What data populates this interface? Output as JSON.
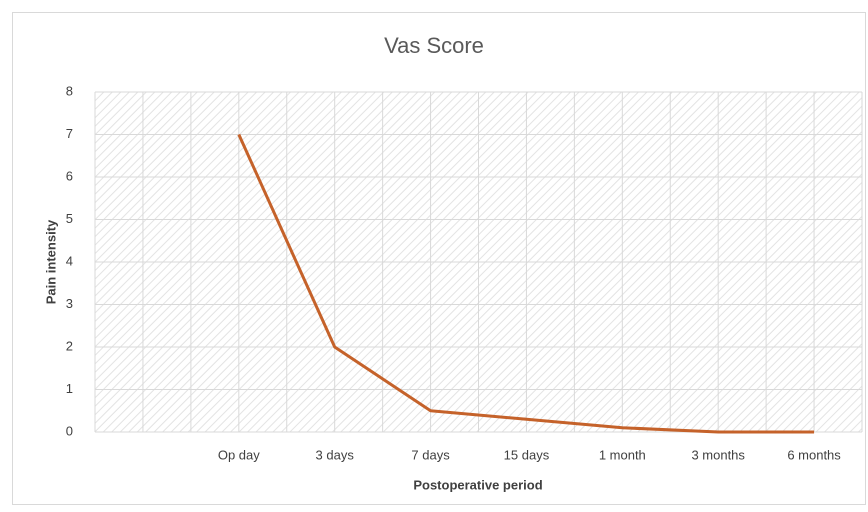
{
  "chart_data": {
    "type": "line",
    "title": "Vas Score",
    "x_label": "Postoperative period",
    "y_label": "Pain intensity",
    "categories": [
      null,
      "Op day",
      "3 days",
      "7 days",
      "15 days",
      "1 month",
      "3 months",
      "6 months"
    ],
    "series": [
      {
        "name": "Vas Score",
        "color": "#c5622a",
        "values": [
          null,
          7,
          2,
          0.5,
          0.3,
          0.1,
          0,
          0
        ]
      }
    ],
    "ylim": [
      0,
      8
    ],
    "yticks": [
      0,
      1,
      2,
      3,
      4,
      5,
      6,
      7,
      8
    ],
    "grid": true
  }
}
